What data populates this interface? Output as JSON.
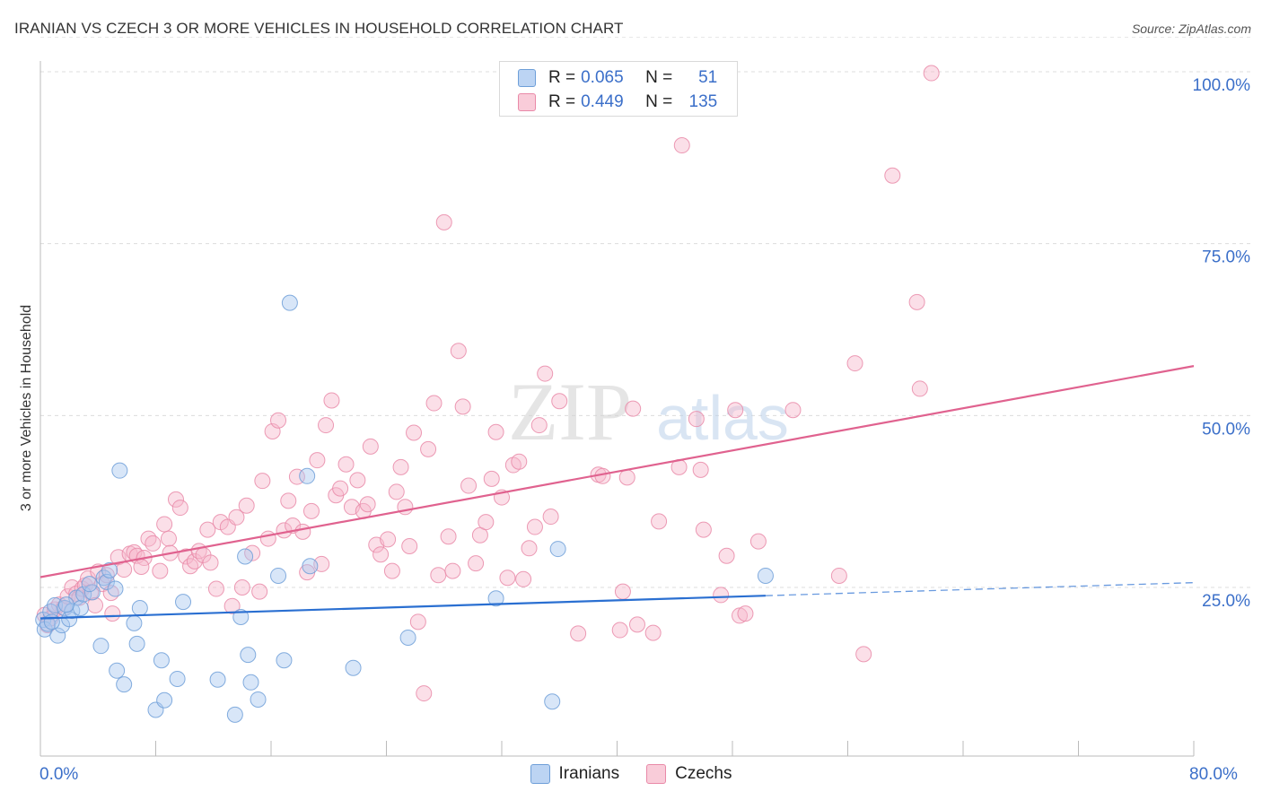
{
  "title": "IRANIAN VS CZECH 3 OR MORE VEHICLES IN HOUSEHOLD CORRELATION CHART",
  "source": "Source: ZipAtlas.com",
  "watermark": {
    "zip": "ZIP",
    "atlas": "atlas"
  },
  "legend": {
    "rows": [
      {
        "r_label": "R =",
        "r_value": "0.065",
        "n_label": "N =",
        "n_value": "51",
        "color": "#a9c8ef",
        "border": "#6e9fd8"
      },
      {
        "r_label": "R =",
        "r_value": "0.449",
        "n_label": "N =",
        "n_value": "135",
        "color": "#f7b9cc",
        "border": "#e989a8"
      }
    ]
  },
  "bottom_legend": [
    "Iranians",
    "Czechs"
  ],
  "chart_data": {
    "type": "scatter",
    "title": "IRANIAN VS CZECH 3 OR MORE VEHICLES IN HOUSEHOLD CORRELATION CHART",
    "xlabel": "",
    "ylabel": "3 or more Vehicles in Household",
    "xlim": [
      0,
      80
    ],
    "ylim": [
      0,
      105
    ],
    "x_tick_labels": [
      "0.0%",
      "80.0%"
    ],
    "y_tick_labels": [
      "25.0%",
      "50.0%",
      "75.0%",
      "100.0%"
    ],
    "y_ticks": [
      25,
      50,
      75,
      100
    ],
    "grid": true,
    "legend_position": "top-center",
    "colors": {
      "Iranians": "#6e9fd8",
      "Czechs": "#e989a8",
      "Iranians_line": "#2a6fd1",
      "Czechs_line": "#e0628f"
    },
    "series": [
      {
        "name": "Iranians",
        "points": [
          [
            0.2,
            20.3
          ],
          [
            0.3,
            18.9
          ],
          [
            0.5,
            19.7
          ],
          [
            0.7,
            21.5
          ],
          [
            1.0,
            22.4
          ],
          [
            1.2,
            18.0
          ],
          [
            1.5,
            19.5
          ],
          [
            1.7,
            22.0
          ],
          [
            2.0,
            20.4
          ],
          [
            2.2,
            21.6
          ],
          [
            2.5,
            23.5
          ],
          [
            2.8,
            22.0
          ],
          [
            3.0,
            24.0
          ],
          [
            4.2,
            16.5
          ],
          [
            4.4,
            26.4
          ],
          [
            4.6,
            25.8
          ],
          [
            5.3,
            12.9
          ],
          [
            5.8,
            10.9
          ],
          [
            6.7,
            16.8
          ],
          [
            6.5,
            19.8
          ],
          [
            6.9,
            22.0
          ],
          [
            5.5,
            42.0
          ],
          [
            8.0,
            7.2
          ],
          [
            8.6,
            8.6
          ],
          [
            8.4,
            14.4
          ],
          [
            9.5,
            11.7
          ],
          [
            9.9,
            22.9
          ],
          [
            12.3,
            11.6
          ],
          [
            13.5,
            6.5
          ],
          [
            13.9,
            20.7
          ],
          [
            14.2,
            29.5
          ],
          [
            14.4,
            15.2
          ],
          [
            14.6,
            11.2
          ],
          [
            15.1,
            8.7
          ],
          [
            16.5,
            26.7
          ],
          [
            16.9,
            14.4
          ],
          [
            17.3,
            66.4
          ],
          [
            18.5,
            41.2
          ],
          [
            18.7,
            28.1
          ],
          [
            21.7,
            13.3
          ],
          [
            25.5,
            17.7
          ],
          [
            31.6,
            23.4
          ],
          [
            35.5,
            8.4
          ],
          [
            35.9,
            30.6
          ],
          [
            50.3,
            26.7
          ],
          [
            4.8,
            27.5
          ],
          [
            5.2,
            24.8
          ],
          [
            3.6,
            24.3
          ],
          [
            0.8,
            20.0
          ],
          [
            1.8,
            22.5
          ],
          [
            3.4,
            25.5
          ]
        ],
        "trend": {
          "x": [
            0,
            50.3
          ],
          "y": [
            20.5,
            23.8
          ]
        },
        "trend_dashed": {
          "x": [
            50.3,
            80
          ],
          "y": [
            23.8,
            25.7
          ]
        }
      },
      {
        "name": "Czechs",
        "points": [
          [
            0.3,
            21.0
          ],
          [
            0.5,
            19.5
          ],
          [
            0.7,
            20.5
          ],
          [
            1.0,
            21.8
          ],
          [
            1.3,
            22.5
          ],
          [
            1.6,
            22.0
          ],
          [
            1.9,
            23.7
          ],
          [
            2.2,
            25.0
          ],
          [
            2.5,
            24.1
          ],
          [
            2.7,
            23.5
          ],
          [
            2.9,
            24.8
          ],
          [
            3.1,
            25.3
          ],
          [
            3.3,
            26.3
          ],
          [
            3.5,
            24.3
          ],
          [
            3.8,
            22.4
          ],
          [
            4.0,
            27.3
          ],
          [
            4.3,
            25.5
          ],
          [
            4.6,
            26.8
          ],
          [
            4.9,
            24.2
          ],
          [
            5.4,
            29.4
          ],
          [
            5.8,
            27.6
          ],
          [
            6.2,
            29.9
          ],
          [
            6.5,
            30.1
          ],
          [
            6.7,
            29.6
          ],
          [
            7.2,
            29.3
          ],
          [
            7.5,
            32.1
          ],
          [
            7.8,
            31.4
          ],
          [
            8.3,
            27.4
          ],
          [
            8.6,
            34.2
          ],
          [
            8.9,
            32.1
          ],
          [
            9.4,
            37.8
          ],
          [
            9.7,
            36.6
          ],
          [
            10.1,
            29.5
          ],
          [
            10.4,
            28.1
          ],
          [
            10.7,
            28.8
          ],
          [
            11.0,
            30.3
          ],
          [
            11.3,
            29.7
          ],
          [
            11.6,
            33.4
          ],
          [
            11.8,
            28.6
          ],
          [
            12.2,
            24.8
          ],
          [
            12.5,
            34.5
          ],
          [
            13.0,
            33.8
          ],
          [
            13.3,
            22.3
          ],
          [
            13.6,
            35.2
          ],
          [
            14.0,
            25.0
          ],
          [
            14.3,
            36.9
          ],
          [
            14.7,
            30.0
          ],
          [
            15.2,
            24.4
          ],
          [
            15.4,
            40.5
          ],
          [
            15.8,
            32.1
          ],
          [
            16.1,
            47.7
          ],
          [
            16.5,
            49.3
          ],
          [
            16.9,
            33.3
          ],
          [
            17.2,
            37.6
          ],
          [
            17.5,
            34.0
          ],
          [
            17.8,
            41.1
          ],
          [
            18.2,
            33.1
          ],
          [
            18.5,
            27.2
          ],
          [
            18.8,
            36.1
          ],
          [
            19.2,
            43.5
          ],
          [
            19.5,
            28.4
          ],
          [
            19.8,
            48.6
          ],
          [
            20.2,
            52.2
          ],
          [
            20.5,
            38.4
          ],
          [
            20.8,
            39.4
          ],
          [
            21.2,
            42.9
          ],
          [
            21.6,
            36.7
          ],
          [
            22.0,
            40.6
          ],
          [
            22.4,
            36.1
          ],
          [
            22.7,
            37.1
          ],
          [
            22.9,
            45.5
          ],
          [
            23.3,
            31.2
          ],
          [
            23.6,
            29.8
          ],
          [
            24.1,
            32.0
          ],
          [
            24.4,
            27.4
          ],
          [
            24.7,
            38.9
          ],
          [
            25.0,
            42.5
          ],
          [
            25.3,
            36.7
          ],
          [
            25.6,
            31.0
          ],
          [
            25.9,
            47.5
          ],
          [
            26.2,
            20.0
          ],
          [
            26.6,
            9.6
          ],
          [
            26.9,
            45.1
          ],
          [
            27.3,
            51.8
          ],
          [
            27.6,
            26.8
          ],
          [
            28.0,
            78.1
          ],
          [
            28.3,
            32.4
          ],
          [
            28.6,
            27.4
          ],
          [
            29.0,
            59.4
          ],
          [
            29.3,
            51.3
          ],
          [
            29.7,
            39.8
          ],
          [
            30.2,
            28.5
          ],
          [
            30.5,
            32.6
          ],
          [
            30.9,
            34.5
          ],
          [
            31.3,
            40.8
          ],
          [
            31.6,
            47.6
          ],
          [
            32.0,
            38.1
          ],
          [
            32.4,
            26.4
          ],
          [
            32.8,
            42.8
          ],
          [
            33.2,
            43.3
          ],
          [
            33.5,
            26.2
          ],
          [
            33.9,
            30.7
          ],
          [
            34.3,
            33.8
          ],
          [
            34.6,
            48.6
          ],
          [
            35.0,
            56.1
          ],
          [
            35.4,
            35.3
          ],
          [
            36.0,
            52.1
          ],
          [
            37.3,
            18.3
          ],
          [
            38.7,
            41.4
          ],
          [
            39.0,
            41.2
          ],
          [
            40.2,
            18.8
          ],
          [
            40.4,
            24.4
          ],
          [
            40.7,
            41.0
          ],
          [
            41.1,
            51.0
          ],
          [
            41.4,
            19.6
          ],
          [
            42.5,
            18.4
          ],
          [
            42.9,
            34.6
          ],
          [
            44.3,
            42.5
          ],
          [
            44.5,
            89.3
          ],
          [
            45.5,
            49.5
          ],
          [
            45.8,
            42.1
          ],
          [
            46.0,
            33.4
          ],
          [
            47.2,
            23.9
          ],
          [
            47.6,
            29.6
          ],
          [
            48.2,
            50.8
          ],
          [
            48.5,
            20.9
          ],
          [
            48.9,
            21.2
          ],
          [
            49.8,
            31.7
          ],
          [
            52.2,
            50.8
          ],
          [
            55.4,
            26.7
          ],
          [
            56.5,
            57.6
          ],
          [
            57.1,
            15.3
          ],
          [
            59.1,
            84.9
          ],
          [
            60.8,
            66.5
          ],
          [
            61.0,
            53.9
          ],
          [
            61.8,
            99.8
          ],
          [
            5.0,
            21.2
          ],
          [
            7.0,
            28.0
          ],
          [
            9.0,
            30.0
          ]
        ],
        "trend": {
          "x": [
            0,
            80
          ],
          "y": [
            26.5,
            57.2
          ]
        }
      }
    ]
  }
}
